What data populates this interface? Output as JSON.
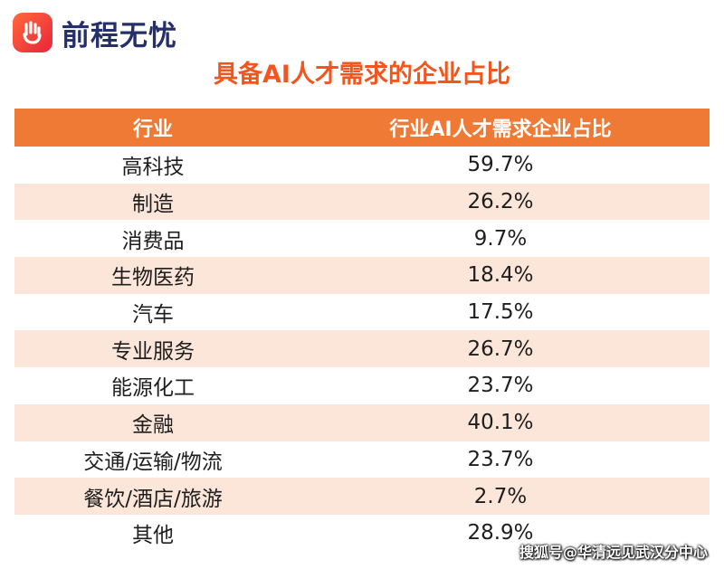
{
  "logo": {
    "text": "前程无忧",
    "icon": "hand-icon",
    "color": "#e9243a"
  },
  "title": "具备AI人才需求的企业占比",
  "colors": {
    "header_bg": "#ee7a35",
    "stripe": "#fbe6d9",
    "title": "#f0561e"
  },
  "chart_data": {
    "type": "table",
    "title": "具备AI人才需求的企业占比",
    "columns": [
      "行业",
      "行业AI人才需求企业占比"
    ],
    "rows": [
      [
        "高科技",
        "59.7%"
      ],
      [
        "制造",
        "26.2%"
      ],
      [
        "消费品",
        "9.7%"
      ],
      [
        "生物医药",
        "18.4%"
      ],
      [
        "汽车",
        "17.5%"
      ],
      [
        "专业服务",
        "26.7%"
      ],
      [
        "能源化工",
        "23.7%"
      ],
      [
        "金融",
        "40.1%"
      ],
      [
        "交通/运输/物流",
        "23.7%"
      ],
      [
        "餐饮/酒店/旅游",
        "2.7%"
      ],
      [
        "其他",
        "28.9%"
      ]
    ]
  },
  "watermark": "搜狐号@华清远见武汉分中心"
}
